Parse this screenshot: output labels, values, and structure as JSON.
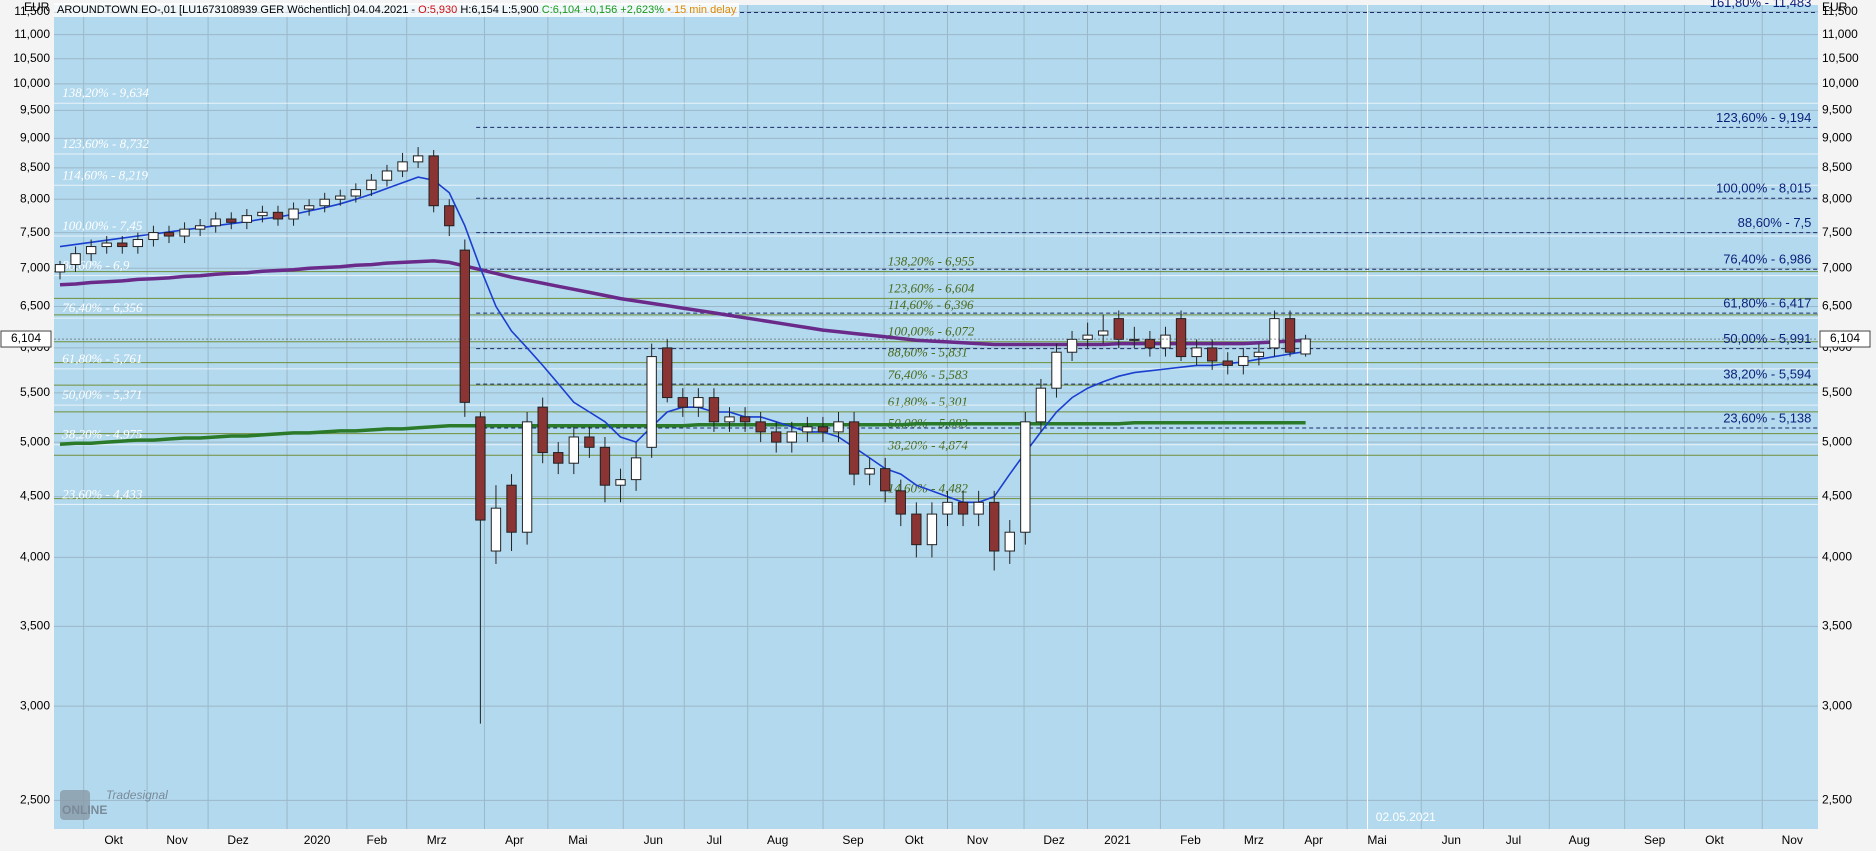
{
  "chart_data": {
    "type": "candlestick",
    "header": {
      "name": "AROUNDTOWN EO-,01 [LU1673108939 GER Wöchentlich] 04.04.2021 -",
      "open": "O:5,930",
      "hl": "H:6,154 L:5,900",
      "change": "C:6,104 +0,156 +2,623%",
      "delay": "• 15 min delay"
    },
    "unit": "EUR",
    "log_scale": true,
    "grid": true,
    "up_color": "#ffffff",
    "down_color": "#8b3434",
    "ylim": [
      2.365,
      11.65
    ],
    "yticks": [
      {
        "value": 2.5,
        "label": "2,500"
      },
      {
        "value": 3,
        "label": "3,000"
      },
      {
        "value": 3.5,
        "label": "3,500"
      },
      {
        "value": 4,
        "label": "4,000"
      },
      {
        "value": 4.5,
        "label": "4,500"
      },
      {
        "value": 5,
        "label": "5,000"
      },
      {
        "value": 5.5,
        "label": "5,500"
      },
      {
        "value": 6,
        "label": "6,000"
      },
      {
        "value": 6.5,
        "label": "6,500"
      },
      {
        "value": 7,
        "label": "7,000"
      },
      {
        "value": 7.5,
        "label": "7,500"
      },
      {
        "value": 8,
        "label": "8,000"
      },
      {
        "value": 8.5,
        "label": "8,500"
      },
      {
        "value": 9,
        "label": "9,000"
      },
      {
        "value": 9.5,
        "label": "9,500"
      },
      {
        "value": 10,
        "label": "10,000"
      },
      {
        "value": 10.5,
        "label": "10,500"
      },
      {
        "value": 11,
        "label": "11,000"
      },
      {
        "value": 11.5,
        "label": "11,500"
      }
    ],
    "x_labels": [
      "Okt",
      "Nov",
      "Dez",
      "2020",
      "Feb",
      "Mrz",
      "Apr",
      "Mai",
      "Jun",
      "Jul",
      "Aug",
      "Sep",
      "Okt",
      "Nov",
      "Dez",
      "2021",
      "Feb",
      "Mrz",
      "Apr",
      "Mai",
      "Jun",
      "Jul",
      "Aug",
      "Sep",
      "Okt",
      "Nov"
    ],
    "categories": [
      null,
      null,
      null,
      null,
      null,
      null,
      null,
      null,
      null,
      null,
      null,
      null,
      null,
      null,
      null,
      null,
      null,
      null,
      null,
      null,
      null,
      null,
      null,
      null,
      null,
      null,
      null,
      null,
      null,
      null,
      null,
      null,
      null,
      null,
      null,
      null,
      null,
      null,
      null,
      null,
      null,
      null,
      null,
      null,
      null,
      null,
      null,
      null,
      null,
      null,
      null,
      null,
      null,
      null,
      null,
      null,
      null,
      null,
      null,
      null,
      null,
      null,
      null,
      null,
      null,
      null,
      null,
      null,
      null,
      null,
      null,
      null,
      null,
      null,
      null,
      null,
      null,
      null,
      null,
      null,
      null
    ],
    "open": [
      6.95,
      7.05,
      7.2,
      7.3,
      7.35,
      7.3,
      7.4,
      7.5,
      7.45,
      7.55,
      7.6,
      7.7,
      7.65,
      7.75,
      7.8,
      7.7,
      7.85,
      7.9,
      8.0,
      8.05,
      8.15,
      8.3,
      8.45,
      8.6,
      8.7,
      7.9,
      7.25,
      5.25,
      4.05,
      4.6,
      4.2,
      5.35,
      4.9,
      4.8,
      5.05,
      4.95,
      4.6,
      4.65,
      4.95,
      6.0,
      5.45,
      5.35,
      5.45,
      5.2,
      5.25,
      5.2,
      5.1,
      5.0,
      5.1,
      5.15,
      5.1,
      5.2,
      4.7,
      4.75,
      4.55,
      4.35,
      4.1,
      4.35,
      4.45,
      4.35,
      4.45,
      4.05,
      4.2,
      5.2,
      5.55,
      5.95,
      6.1,
      6.15,
      6.35,
      6.1,
      6.1,
      6.0,
      6.35,
      5.9,
      6.0,
      5.85,
      5.8,
      5.9,
      6.0,
      6.35,
      5.93
    ],
    "high": [
      7.1,
      7.3,
      7.4,
      7.45,
      7.45,
      7.5,
      7.6,
      7.6,
      7.65,
      7.7,
      7.8,
      7.8,
      7.85,
      7.9,
      7.9,
      7.95,
      8.0,
      8.1,
      8.15,
      8.25,
      8.4,
      8.55,
      8.75,
      8.85,
      8.8,
      8.0,
      7.4,
      5.3,
      4.6,
      4.7,
      5.3,
      5.45,
      5.0,
      5.15,
      5.15,
      5.05,
      4.75,
      5.0,
      6.05,
      6.1,
      5.55,
      5.55,
      5.55,
      5.35,
      5.35,
      5.3,
      5.2,
      5.2,
      5.25,
      5.25,
      5.3,
      5.3,
      4.85,
      4.85,
      4.65,
      4.45,
      4.45,
      4.55,
      4.55,
      4.55,
      4.55,
      4.3,
      5.3,
      5.65,
      6.05,
      6.2,
      6.3,
      6.4,
      6.45,
      6.25,
      6.2,
      6.25,
      6.45,
      6.1,
      6.1,
      5.95,
      6.0,
      6.05,
      6.45,
      6.45,
      6.154
    ],
    "low": [
      6.85,
      6.95,
      7.1,
      7.2,
      7.2,
      7.2,
      7.3,
      7.35,
      7.35,
      7.45,
      7.5,
      7.55,
      7.55,
      7.65,
      7.6,
      7.6,
      7.75,
      7.8,
      7.9,
      7.95,
      8.05,
      8.2,
      8.35,
      8.5,
      7.8,
      7.45,
      5.25,
      2.9,
      3.95,
      4.05,
      4.1,
      4.8,
      4.7,
      4.7,
      4.85,
      4.45,
      4.45,
      4.55,
      4.85,
      5.4,
      5.25,
      5.25,
      5.1,
      5.1,
      5.1,
      5.0,
      4.9,
      4.9,
      5.0,
      5.0,
      5.0,
      4.6,
      4.6,
      4.45,
      4.25,
      4.0,
      4.0,
      4.25,
      4.25,
      4.25,
      3.9,
      3.95,
      4.1,
      5.1,
      5.45,
      5.85,
      6.0,
      6.05,
      6.0,
      6.0,
      5.9,
      5.9,
      5.85,
      5.8,
      5.75,
      5.7,
      5.7,
      5.8,
      5.9,
      5.9,
      5.9
    ],
    "close": [
      7.05,
      7.2,
      7.3,
      7.35,
      7.3,
      7.4,
      7.5,
      7.45,
      7.55,
      7.6,
      7.7,
      7.65,
      7.75,
      7.8,
      7.7,
      7.85,
      7.9,
      8.0,
      8.05,
      8.15,
      8.3,
      8.45,
      8.6,
      8.7,
      7.9,
      7.6,
      5.4,
      4.3,
      4.4,
      4.2,
      5.2,
      4.9,
      4.8,
      5.05,
      4.95,
      4.6,
      4.65,
      4.85,
      5.9,
      5.45,
      5.35,
      5.45,
      5.2,
      5.25,
      5.2,
      5.1,
      5.0,
      5.1,
      5.15,
      5.1,
      5.2,
      4.7,
      4.75,
      4.55,
      4.35,
      4.1,
      4.35,
      4.45,
      4.35,
      4.45,
      4.05,
      4.2,
      5.2,
      5.55,
      5.95,
      6.1,
      6.15,
      6.2,
      6.1,
      6.1,
      6.0,
      6.15,
      5.9,
      6.0,
      5.85,
      5.8,
      5.9,
      5.95,
      6.35,
      5.95,
      6.104
    ],
    "series": [
      {
        "color": "#6a2a8a",
        "values": [
          6.78,
          6.79,
          6.81,
          6.82,
          6.83,
          6.85,
          6.86,
          6.87,
          6.89,
          6.9,
          6.92,
          6.93,
          6.94,
          6.96,
          6.97,
          6.98,
          7.0,
          7.01,
          7.02,
          7.04,
          7.05,
          7.07,
          7.08,
          7.09,
          7.1,
          7.08,
          7.03,
          6.98,
          6.93,
          6.88,
          6.84,
          6.8,
          6.76,
          6.72,
          6.68,
          6.64,
          6.6,
          6.57,
          6.54,
          6.51,
          6.48,
          6.45,
          6.42,
          6.39,
          6.36,
          6.33,
          6.3,
          6.27,
          6.24,
          6.21,
          6.19,
          6.17,
          6.15,
          6.13,
          6.11,
          6.09,
          6.08,
          6.07,
          6.06,
          6.05,
          6.04,
          6.04,
          6.04,
          6.04,
          6.04,
          6.04,
          6.04,
          6.04,
          6.05,
          6.05,
          6.05,
          6.05,
          6.05,
          6.05,
          6.05,
          6.05,
          6.05,
          6.06,
          6.07,
          6.08,
          6.09
        ]
      },
      {
        "color": "#2a7a2a",
        "values": [
          4.98,
          4.99,
          4.99,
          5.0,
          5.01,
          5.02,
          5.02,
          5.03,
          5.04,
          5.04,
          5.05,
          5.06,
          5.06,
          5.07,
          5.08,
          5.09,
          5.09,
          5.1,
          5.11,
          5.11,
          5.12,
          5.13,
          5.13,
          5.14,
          5.15,
          5.16,
          5.16,
          5.16,
          5.16,
          5.16,
          5.16,
          5.16,
          5.16,
          5.16,
          5.16,
          5.16,
          5.16,
          5.16,
          5.16,
          5.16,
          5.16,
          5.17,
          5.17,
          5.17,
          5.17,
          5.17,
          5.17,
          5.17,
          5.17,
          5.17,
          5.17,
          5.17,
          5.17,
          5.17,
          5.17,
          5.18,
          5.18,
          5.18,
          5.18,
          5.18,
          5.18,
          5.18,
          5.18,
          5.18,
          5.18,
          5.18,
          5.18,
          5.18,
          5.18,
          5.19,
          5.19,
          5.19,
          5.19,
          5.19,
          5.19,
          5.19,
          5.19,
          5.19,
          5.19,
          5.19,
          5.19
        ]
      },
      {
        "color": "#1a3fd0",
        "values": [
          7.3,
          7.33,
          7.36,
          7.39,
          7.42,
          7.45,
          7.48,
          7.51,
          7.54,
          7.57,
          7.6,
          7.63,
          7.66,
          7.7,
          7.73,
          7.77,
          7.82,
          7.87,
          7.93,
          8.0,
          8.08,
          8.17,
          8.26,
          8.35,
          8.3,
          8.1,
          7.6,
          7.0,
          6.5,
          6.2,
          6.0,
          5.8,
          5.6,
          5.4,
          5.3,
          5.2,
          5.05,
          5.0,
          5.15,
          5.3,
          5.35,
          5.35,
          5.3,
          5.3,
          5.25,
          5.25,
          5.2,
          5.15,
          5.1,
          5.1,
          5.05,
          4.95,
          4.85,
          4.75,
          4.7,
          4.6,
          4.55,
          4.5,
          4.45,
          4.45,
          4.5,
          4.7,
          4.9,
          5.1,
          5.3,
          5.45,
          5.55,
          5.62,
          5.68,
          5.72,
          5.74,
          5.76,
          5.78,
          5.8,
          5.8,
          5.82,
          5.84,
          5.87,
          5.9,
          5.93,
          5.96
        ]
      }
    ],
    "fib_right": [
      {
        "value": 11.483,
        "label": "161,80% - 11,483"
      },
      {
        "value": 9.194,
        "label": "123,60% - 9,194"
      },
      {
        "value": 8.015,
        "label": "100,00% - 8,015"
      },
      {
        "value": 7.5,
        "label": "88,60% - 7,5"
      },
      {
        "value": 6.986,
        "label": "76,40% - 6,986"
      },
      {
        "value": 6.417,
        "label": "61,80% - 6,417"
      },
      {
        "value": 5.991,
        "label": "50,00% - 5,991"
      },
      {
        "value": 5.594,
        "label": "38,20% - 5,594"
      },
      {
        "value": 5.138,
        "label": "23,60% - 5,138"
      }
    ],
    "fib_mid": [
      {
        "value": 6.955,
        "label": "138,20% - 6,955"
      },
      {
        "value": 6.604,
        "label": "123,60% - 6,604"
      },
      {
        "value": 6.396,
        "label": "114,60% - 6,396"
      },
      {
        "value": 6.072,
        "label": "100,00% - 6,072"
      },
      {
        "value": 5.831,
        "label": "88,60% - 5,831"
      },
      {
        "value": 5.583,
        "label": "76,40% - 5,583"
      },
      {
        "value": 5.301,
        "label": "61,80% - 5,301"
      },
      {
        "value": 5.083,
        "label": "50,00% - 5,083"
      },
      {
        "value": 4.874,
        "label": "38,20% - 4,874"
      },
      {
        "value": 4.482,
        "label": "14,60% - 4,482"
      }
    ],
    "fib_left": [
      {
        "value": 9.634,
        "label": "138,20% - 9,634"
      },
      {
        "value": 8.732,
        "label": "123,60% - 8,732"
      },
      {
        "value": 8.219,
        "label": "114,60% - 8,219"
      },
      {
        "value": 7.45,
        "label": "100,00% - 7,45"
      },
      {
        "value": 6.9,
        "label": "88,60% - 6,9"
      },
      {
        "value": 6.356,
        "label": "76,40% - 6,356"
      },
      {
        "value": 5.761,
        "label": "61,80% - 5,761"
      },
      {
        "value": 5.371,
        "label": "50,00% - 5,371"
      },
      {
        "value": 4.975,
        "label": "38,20% - 4,975"
      },
      {
        "value": 4.433,
        "label": "23,60% - 4,433"
      }
    ],
    "last_price": {
      "value": 6.104,
      "label": "6,104"
    },
    "marker_date": "02.05.2021",
    "logo": {
      "top": "Tradesignal",
      "main": "ONLINE"
    }
  }
}
